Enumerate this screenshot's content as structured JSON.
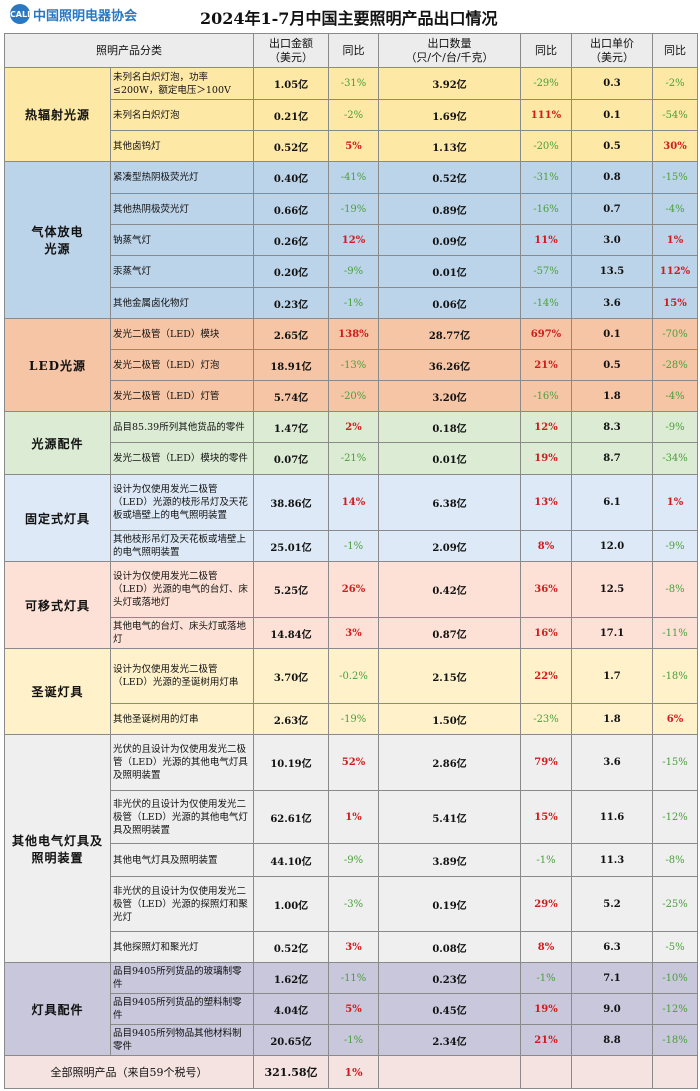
{
  "header": {
    "logo_text": "中国照明电器协会",
    "logo_mark": "CALI",
    "title": "2024年1-7月中国主要照明产品出口情况"
  },
  "columns": [
    "照明产品分类",
    "出口金额\n（美元）",
    "同比",
    "出口数量\n（只/个/台/千克）",
    "同比",
    "出口单价\n（美元）",
    "同比"
  ],
  "colors": {
    "positive": "#d01c1c",
    "negative": "#4aa03c"
  },
  "groups": [
    {
      "category": "热辐射光源",
      "color": "#fde8a6",
      "rows": [
        {
          "name": "未列名白炽灯泡，功率≤200W，额定电压＞100V",
          "value": "1.05亿",
          "value_yoy": "-31%",
          "qty": "3.92亿",
          "qty_yoy": "-29%",
          "price": "0.3",
          "price_yoy": "-2%",
          "h": 32
        },
        {
          "name": "未列名白炽灯泡",
          "value": "0.21亿",
          "value_yoy": "-2%",
          "qty": "1.69亿",
          "qty_yoy": "111%",
          "price": "0.1",
          "price_yoy": "-54%",
          "h": 31
        },
        {
          "name": "其他卤钨灯",
          "value": "0.52亿",
          "value_yoy": "5%",
          "qty": "1.13亿",
          "qty_yoy": "-20%",
          "price": "0.5",
          "price_yoy": "30%",
          "h": 31
        }
      ]
    },
    {
      "category": "气体放电\n光源",
      "color": "#bcd4ea",
      "rows": [
        {
          "name": "紧凑型热阴极荧光灯",
          "value": "0.40亿",
          "value_yoy": "-41%",
          "qty": "0.52亿",
          "qty_yoy": "-31%",
          "price": "0.8",
          "price_yoy": "-15%",
          "h": 32
        },
        {
          "name": "其他热阴极荧光灯",
          "value": "0.66亿",
          "value_yoy": "-19%",
          "qty": "0.89亿",
          "qty_yoy": "-16%",
          "price": "0.7",
          "price_yoy": "-4%",
          "h": 31
        },
        {
          "name": "钠蒸气灯",
          "value": "0.26亿",
          "value_yoy": "12%",
          "qty": "0.09亿",
          "qty_yoy": "11%",
          "price": "3.0",
          "price_yoy": "1%",
          "h": 31
        },
        {
          "name": "汞蒸气灯",
          "value": "0.20亿",
          "value_yoy": "-9%",
          "qty": "0.01亿",
          "qty_yoy": "-57%",
          "price": "13.5",
          "price_yoy": "112%",
          "h": 32
        },
        {
          "name": "其他金属卤化物灯",
          "value": "0.23亿",
          "value_yoy": "-1%",
          "qty": "0.06亿",
          "qty_yoy": "-14%",
          "price": "3.6",
          "price_yoy": "15%",
          "h": 31
        }
      ]
    },
    {
      "category": "LED光源",
      "color": "#f6c5a5",
      "rows": [
        {
          "name": "发光二极管（LED）模块",
          "value": "2.65亿",
          "value_yoy": "138%",
          "qty": "28.77亿",
          "qty_yoy": "697%",
          "price": "0.1",
          "price_yoy": "-70%",
          "h": 31
        },
        {
          "name": "发光二极管（LED）灯泡",
          "value": "18.91亿",
          "value_yoy": "-13%",
          "qty": "36.26亿",
          "qty_yoy": "21%",
          "price": "0.5",
          "price_yoy": "-28%",
          "h": 31
        },
        {
          "name": "发光二极管（LED）灯管",
          "value": "5.74亿",
          "value_yoy": "-20%",
          "qty": "3.20亿",
          "qty_yoy": "-16%",
          "price": "1.8",
          "price_yoy": "-4%",
          "h": 31
        }
      ]
    },
    {
      "category": "光源配件",
      "color": "#dcebd3",
      "rows": [
        {
          "name": "品目85.39所列其他货品的零件",
          "value": "1.47亿",
          "value_yoy": "2%",
          "qty": "0.18亿",
          "qty_yoy": "12%",
          "price": "8.3",
          "price_yoy": "-9%",
          "h": 31
        },
        {
          "name": "发光二极管（LED）模块的零件",
          "value": "0.07亿",
          "value_yoy": "-21%",
          "qty": "0.01亿",
          "qty_yoy": "19%",
          "price": "8.7",
          "price_yoy": "-34%",
          "h": 32
        }
      ]
    },
    {
      "category": "固定式灯具",
      "color": "#dde9f6",
      "rows": [
        {
          "name": "设计为仅使用发光二极管（LED）光源的枝形吊灯及天花板或墙壁上的电气照明装置",
          "value": "38.86亿",
          "value_yoy": "14%",
          "qty": "6.38亿",
          "qty_yoy": "13%",
          "price": "6.1",
          "price_yoy": "1%",
          "h": 56
        },
        {
          "name": "其他枝形吊灯及天花板或墙壁上的电气照明装置",
          "value": "25.01亿",
          "value_yoy": "-1%",
          "qty": "2.09亿",
          "qty_yoy": "8%",
          "price": "12.0",
          "price_yoy": "-9%",
          "h": 31
        }
      ]
    },
    {
      "category": "可移式灯具",
      "color": "#fde1d6",
      "rows": [
        {
          "name": "设计为仅使用发光二极管（LED）光源的电气的台灯、床头灯或落地灯",
          "value": "5.25亿",
          "value_yoy": "26%",
          "qty": "0.42亿",
          "qty_yoy": "36%",
          "price": "12.5",
          "price_yoy": "-8%",
          "h": 56
        },
        {
          "name": "其他电气的台灯、床头灯或落地灯",
          "value": "14.84亿",
          "value_yoy": "3%",
          "qty": "0.87亿",
          "qty_yoy": "16%",
          "price": "17.1",
          "price_yoy": "-11%",
          "h": 31
        }
      ]
    },
    {
      "category": "圣诞灯具",
      "color": "#fff2cb",
      "rows": [
        {
          "name": "设计为仅使用发光二极管（LED）光源的圣诞树用灯串",
          "value": "3.70亿",
          "value_yoy": "-0.2%",
          "qty": "2.15亿",
          "qty_yoy": "22%",
          "price": "1.7",
          "price_yoy": "-18%",
          "h": 55
        },
        {
          "name": "其他圣诞树用的灯串",
          "value": "2.63亿",
          "value_yoy": "-19%",
          "qty": "1.50亿",
          "qty_yoy": "-23%",
          "price": "1.8",
          "price_yoy": "6%",
          "h": 31
        }
      ]
    },
    {
      "category": "其他电气灯具及\n照明装置",
      "color": "#efefef",
      "rows": [
        {
          "name": "光伏的且设计为仅使用发光二极管（LED）光源的其他电气灯具及照明装置",
          "value": "10.19亿",
          "value_yoy": "52%",
          "qty": "2.86亿",
          "qty_yoy": "79%",
          "price": "3.6",
          "price_yoy": "-15%",
          "h": 56
        },
        {
          "name": "非光伏的且设计为仅使用发光二极管（LED）光源的其他电气灯具及照明装置",
          "value": "62.61亿",
          "value_yoy": "1%",
          "qty": "5.41亿",
          "qty_yoy": "15%",
          "price": "11.6",
          "price_yoy": "-12%",
          "h": 53
        },
        {
          "name": "其他电气灯具及照明装置",
          "value": "44.10亿",
          "value_yoy": "-9%",
          "qty": "3.89亿",
          "qty_yoy": "-1%",
          "price": "11.3",
          "price_yoy": "-8%",
          "h": 33
        },
        {
          "name": "非光伏的且设计为仅使用发光二极管（LED）光源的探照灯和聚光灯",
          "value": "1.00亿",
          "value_yoy": "-3%",
          "qty": "0.19亿",
          "qty_yoy": "29%",
          "price": "5.2",
          "price_yoy": "-25%",
          "h": 55
        },
        {
          "name": "其他探照灯和聚光灯",
          "value": "0.52亿",
          "value_yoy": "3%",
          "qty": "0.08亿",
          "qty_yoy": "8%",
          "price": "6.3",
          "price_yoy": "-5%",
          "h": 31
        }
      ]
    },
    {
      "category": "灯具配件",
      "color": "#c9c7dc",
      "rows": [
        {
          "name": "品目9405所列货品的玻璃制零件",
          "value": "1.62亿",
          "value_yoy": "-11%",
          "qty": "0.23亿",
          "qty_yoy": "-1%",
          "price": "7.1",
          "price_yoy": "-10%",
          "h": 31
        },
        {
          "name": "品目9405所列货品的塑料制零件",
          "value": "4.04亿",
          "value_yoy": "5%",
          "qty": "0.45亿",
          "qty_yoy": "19%",
          "price": "9.0",
          "price_yoy": "-12%",
          "h": 31
        },
        {
          "name": "品目9405所列物品其他材料制零件",
          "value": "20.65亿",
          "value_yoy": "-1%",
          "qty": "2.34亿",
          "qty_yoy": "21%",
          "price": "8.8",
          "price_yoy": "-18%",
          "h": 31
        }
      ]
    }
  ],
  "total": {
    "label": "全部照明产品（来自59个税号）",
    "value": "321.58亿",
    "value_yoy": "1%",
    "color": "#f4e3e1"
  }
}
